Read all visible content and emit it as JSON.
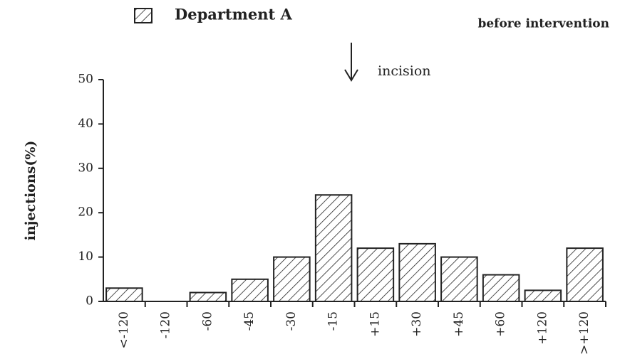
{
  "chart_data": {
    "type": "bar",
    "legend": "Department A",
    "subtitle": "before intervention",
    "annotation": "incision",
    "ylabel": "injections(%)",
    "categories": [
      "<-120",
      "-120",
      "-60",
      "-45",
      "-30",
      "-15",
      "+15",
      "+30",
      "+45",
      "+60",
      "+120",
      ">+120"
    ],
    "values": [
      3,
      0,
      2,
      5,
      10,
      24,
      12,
      13,
      10,
      6,
      2.5,
      12
    ],
    "color": "#222222",
    "ylim": [
      0,
      50
    ],
    "yticks": [
      0,
      10,
      20,
      30,
      40,
      50
    ]
  }
}
